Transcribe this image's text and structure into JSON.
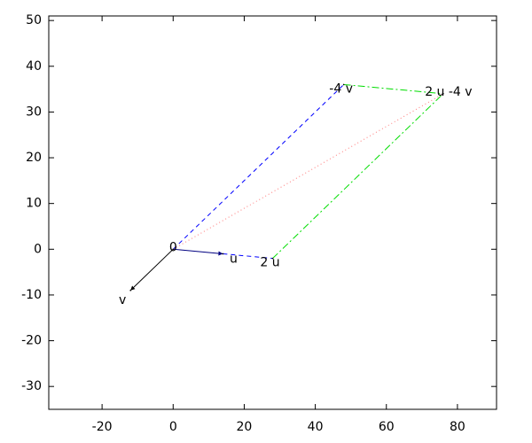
{
  "chart_data": {
    "type": "vector",
    "xlim": [
      -35,
      91
    ],
    "ylim": [
      -35,
      51
    ],
    "xticks": [
      -20,
      0,
      20,
      40,
      60,
      80
    ],
    "yticks": [
      -30,
      -20,
      -10,
      0,
      10,
      20,
      30,
      40,
      50
    ],
    "points": [
      {
        "label": "0",
        "x": 0,
        "y": 0
      },
      {
        "label": "u",
        "x": 14,
        "y": -1
      },
      {
        "label": "2 u",
        "x": 28,
        "y": -2
      },
      {
        "label": "v",
        "x": -12,
        "y": -9
      },
      {
        "label": "-4 v",
        "x": 48,
        "y": 36
      },
      {
        "label": "2 u -4 v",
        "x": 76,
        "y": 34
      }
    ],
    "segments": [
      {
        "color": "#000080",
        "style": "solid",
        "arrow": true,
        "x": [
          0,
          14
        ],
        "y": [
          0,
          -1
        ]
      },
      {
        "color": "#000000",
        "style": "solid",
        "arrow": true,
        "x": [
          0,
          -12
        ],
        "y": [
          0,
          -9
        ]
      },
      {
        "color": "#0000ff",
        "style": "dashed",
        "arrow": false,
        "x": [
          14,
          28
        ],
        "y": [
          -1,
          -2
        ]
      },
      {
        "color": "#0000ff",
        "style": "dashed",
        "arrow": false,
        "x": [
          0,
          48
        ],
        "y": [
          0,
          36
        ]
      },
      {
        "color": "#00dd00",
        "style": "dashdot",
        "arrow": false,
        "x": [
          28,
          76
        ],
        "y": [
          -2,
          34
        ]
      },
      {
        "color": "#00dd00",
        "style": "dashdot",
        "arrow": false,
        "x": [
          48,
          76
        ],
        "y": [
          36,
          34
        ]
      },
      {
        "color": "#ff7777",
        "style": "dotted",
        "arrow": false,
        "x": [
          0,
          76
        ],
        "y": [
          0,
          34
        ]
      }
    ]
  }
}
